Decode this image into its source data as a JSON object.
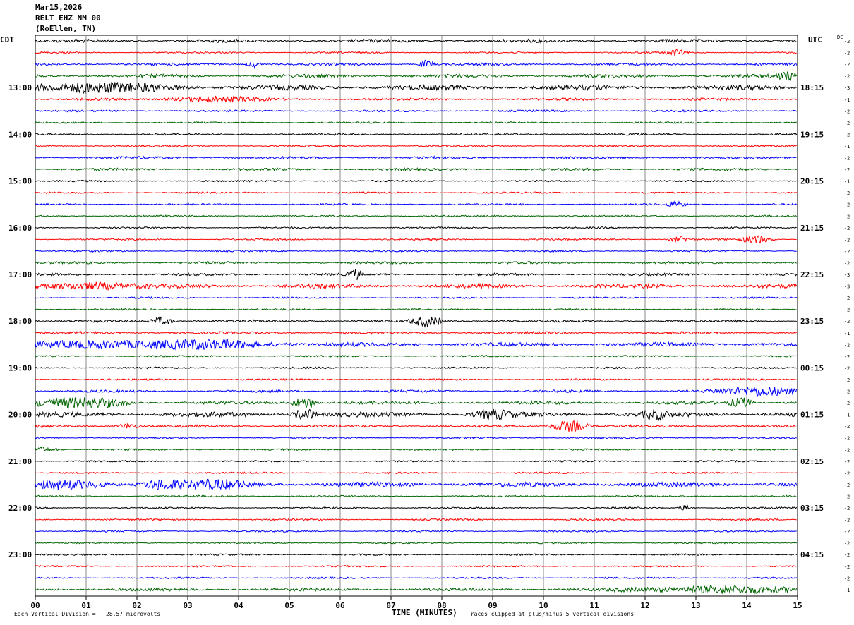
{
  "header": {
    "date": "Mar15,2026",
    "station": "RELT EHZ NM 00",
    "location": "(RoEllen, TN)"
  },
  "left_zone": "CDT",
  "right_zone": "UTC",
  "dc_label": "DC",
  "footer": {
    "scale_note": "Each Vertical Division =   28.57 microvolts",
    "x_title": "TIME (MINUTES)",
    "clip_note": "Traces clipped at plus/minus 5 vertical divisions"
  },
  "colors": {
    "cycle": [
      "#000000",
      "#ff0000",
      "#0000ff",
      "#006400"
    ],
    "grid": "#888888"
  },
  "chart_data": {
    "type": "line",
    "title": "",
    "xlabel": "TIME (MINUTES)",
    "xlim": [
      0,
      15
    ],
    "x_ticks": [
      "00",
      "01",
      "02",
      "03",
      "04",
      "05",
      "06",
      "07",
      "08",
      "09",
      "10",
      "11",
      "12",
      "13",
      "14",
      "15"
    ],
    "grid": true,
    "trace_count": 48,
    "hour_labels_left": [
      "13:00",
      "14:00",
      "15:00",
      "16:00",
      "17:00",
      "18:00",
      "19:00",
      "20:00",
      "21:00",
      "22:00",
      "23:00"
    ],
    "hour_labels_right": [
      "18:15",
      "19:15",
      "20:15",
      "21:15",
      "22:15",
      "23:15",
      "00:15",
      "01:15",
      "02:15",
      "03:15",
      "04:15"
    ],
    "hour_label_first_trace": 4,
    "dc_offsets": [
      "-2",
      "-2",
      "-2",
      "-2",
      "-3",
      "-1",
      "-2",
      "-2",
      "-2",
      "-1",
      "-2",
      "-2",
      "-1",
      "-2",
      "-2",
      "-2",
      "-2",
      "-2",
      "-2",
      "-2",
      "-3",
      "-3",
      "-2",
      "-2",
      "-2",
      "-1",
      "-2",
      "-2",
      "-2",
      "-2",
      "-2",
      "-2",
      "-1",
      "-2",
      "-2",
      "-2",
      "-2",
      "-2",
      "-2",
      "-2",
      "-2",
      "-2",
      "-2",
      "-2",
      "-2",
      "-2",
      "-2",
      "-1"
    ],
    "amplitude": [
      2,
      1,
      1.5,
      2,
      3,
      1.5,
      1.2,
      1,
      1.2,
      1,
      1.5,
      1.5,
      1,
      1,
      1,
      1,
      1,
      1,
      1,
      1.5,
      1.5,
      2.5,
      1,
      1,
      1.5,
      1.5,
      2.5,
      1,
      1,
      1,
      1.5,
      2,
      3,
      1.5,
      1,
      1,
      1,
      1,
      3,
      1,
      1,
      1,
      1,
      1,
      1,
      1,
      1,
      1.8
    ],
    "events": [
      {
        "trace": 1,
        "minute": 12.6,
        "amp": 4,
        "dur": 0.3
      },
      {
        "trace": 2,
        "minute": 4.3,
        "amp": 5,
        "dur": 0.2
      },
      {
        "trace": 2,
        "minute": 7.7,
        "amp": 6,
        "dur": 0.2
      },
      {
        "trace": 3,
        "minute": 14.8,
        "amp": 5,
        "dur": 0.4
      },
      {
        "trace": 4,
        "minute": 1.0,
        "amp": 6,
        "dur": 2.5
      },
      {
        "trace": 5,
        "minute": 3.5,
        "amp": 4,
        "dur": 1.2
      },
      {
        "trace": 14,
        "minute": 12.6,
        "amp": 4,
        "dur": 0.3
      },
      {
        "trace": 17,
        "minute": 12.7,
        "amp": 4,
        "dur": 0.3
      },
      {
        "trace": 17,
        "minute": 14.2,
        "amp": 6,
        "dur": 0.4
      },
      {
        "trace": 20,
        "minute": 6.3,
        "amp": 7,
        "dur": 0.2
      },
      {
        "trace": 21,
        "minute": 1.2,
        "amp": 5,
        "dur": 1.2
      },
      {
        "trace": 24,
        "minute": 7.7,
        "amp": 8,
        "dur": 0.4
      },
      {
        "trace": 24,
        "minute": 2.5,
        "amp": 6,
        "dur": 0.3
      },
      {
        "trace": 26,
        "minute": 3.3,
        "amp": 6,
        "dur": 2.0
      },
      {
        "trace": 26,
        "minute": 1.3,
        "amp": 5,
        "dur": 1.5
      },
      {
        "trace": 30,
        "minute": 14.3,
        "amp": 7,
        "dur": 1.2
      },
      {
        "trace": 31,
        "minute": 0.8,
        "amp": 10,
        "dur": 1.2
      },
      {
        "trace": 31,
        "minute": 5.3,
        "amp": 10,
        "dur": 0.3
      },
      {
        "trace": 31,
        "minute": 13.9,
        "amp": 8,
        "dur": 0.3
      },
      {
        "trace": 32,
        "minute": 5.3,
        "amp": 9,
        "dur": 0.3
      },
      {
        "trace": 32,
        "minute": 9.0,
        "amp": 6,
        "dur": 0.5
      },
      {
        "trace": 32,
        "minute": 12.2,
        "amp": 7,
        "dur": 0.3
      },
      {
        "trace": 33,
        "minute": 10.5,
        "amp": 9,
        "dur": 0.5
      },
      {
        "trace": 33,
        "minute": 1.8,
        "amp": 4,
        "dur": 0.3
      },
      {
        "trace": 35,
        "minute": 0.1,
        "amp": 4,
        "dur": 0.5
      },
      {
        "trace": 38,
        "minute": 2.5,
        "amp": 8,
        "dur": 0.6
      },
      {
        "trace": 38,
        "minute": 3.5,
        "amp": 6,
        "dur": 1.0
      },
      {
        "trace": 38,
        "minute": 0.5,
        "amp": 4,
        "dur": 1.2
      },
      {
        "trace": 40,
        "minute": 12.8,
        "amp": 4,
        "dur": 0.2
      },
      {
        "trace": 47,
        "minute": 13.5,
        "amp": 5,
        "dur": 2.5
      }
    ]
  }
}
